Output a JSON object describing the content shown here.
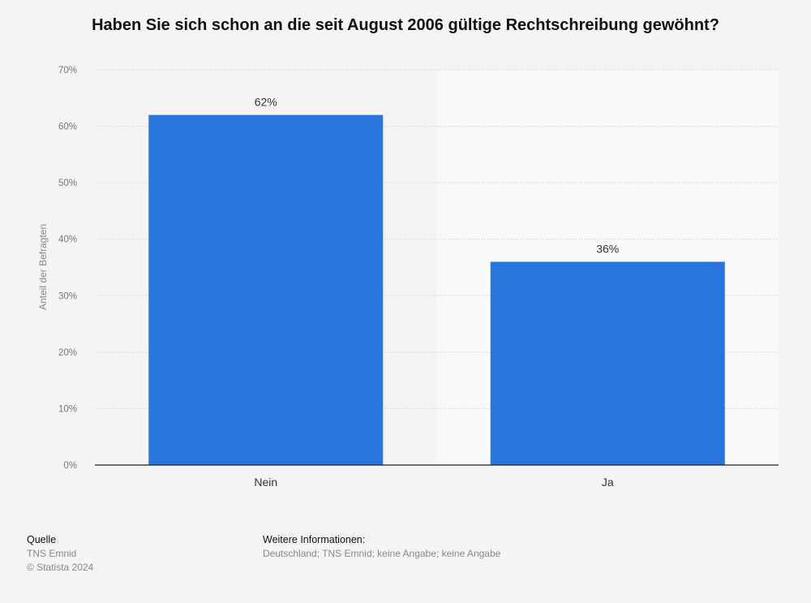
{
  "chart_data": {
    "type": "bar",
    "title": "Haben Sie sich schon an die seit August 2006 gültige Rechtschreibung gewöhnt?",
    "ylabel": "Anteil der Befragten",
    "xlabel": "",
    "categories": [
      "Nein",
      "Ja"
    ],
    "values": [
      62,
      36
    ],
    "value_labels": [
      "62%",
      "36%"
    ],
    "ylim": [
      0,
      70
    ],
    "yticks": [
      "0%",
      "10%",
      "20%",
      "30%",
      "40%",
      "50%",
      "60%",
      "70%"
    ],
    "grid": true,
    "bar_color": "#2876dd"
  },
  "footer": {
    "source_heading": "Quelle",
    "source_text": "TNS Emnid",
    "copyright": "© Statista 2024",
    "info_heading": "Weitere Informationen:",
    "info_text": "Deutschland; TNS Emnid; keine Angabe; keine Angabe"
  }
}
